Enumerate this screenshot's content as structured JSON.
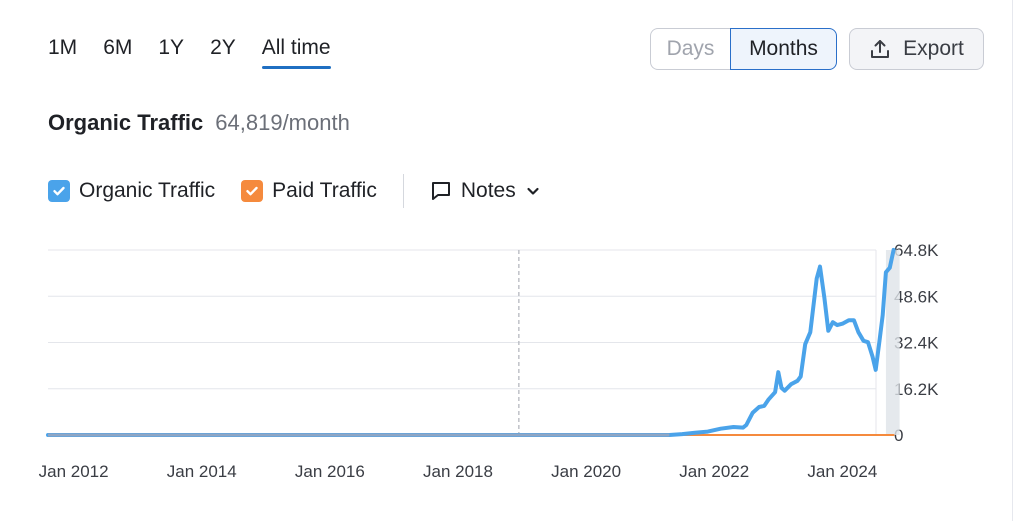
{
  "ranges": [
    "1M",
    "6M",
    "1Y",
    "2Y",
    "All time"
  ],
  "active_range": "All time",
  "granularity": {
    "days": "Days",
    "months": "Months",
    "selected": "Months"
  },
  "export_label": "Export",
  "title": "Organic Traffic",
  "metric_value": "64,819/month",
  "legend": {
    "organic": {
      "label": "Organic Traffic",
      "color": "#4aa3ea",
      "checked": true
    },
    "paid": {
      "label": "Paid Traffic",
      "color": "#f58a3d",
      "checked": true
    }
  },
  "notes_label": "Notes",
  "icons": {
    "export": "upload-icon",
    "notes": "speech-bubble-icon",
    "chevron": "chevron-down-icon",
    "check": "check-icon"
  },
  "chart_data": {
    "type": "line",
    "x_ticks": [
      "Jan 2012",
      "Jan 2014",
      "Jan 2016",
      "Jan 2018",
      "Jan 2020",
      "Jan 2022",
      "Jan 2024"
    ],
    "y_ticks": [
      "0",
      "16.2K",
      "32.4K",
      "48.6K",
      "64.8K"
    ],
    "ylim": [
      0,
      64800
    ],
    "xlim": [
      2011.6,
      2024.4
    ],
    "grid": true,
    "marker_line_x": 2018.95,
    "series": [
      {
        "name": "Organic Traffic",
        "color": "#4aa3ea",
        "points": [
          [
            2011.6,
            0
          ],
          [
            2021.3,
            0
          ],
          [
            2021.5,
            300
          ],
          [
            2021.7,
            800
          ],
          [
            2021.9,
            1200
          ],
          [
            2022.1,
            2200
          ],
          [
            2022.3,
            2800
          ],
          [
            2022.45,
            2600
          ],
          [
            2022.5,
            3500
          ],
          [
            2022.6,
            7800
          ],
          [
            2022.7,
            9800
          ],
          [
            2022.78,
            10200
          ],
          [
            2022.85,
            12500
          ],
          [
            2022.95,
            15000
          ],
          [
            2023.0,
            22000
          ],
          [
            2023.05,
            16500
          ],
          [
            2023.1,
            15500
          ],
          [
            2023.2,
            17800
          ],
          [
            2023.3,
            19000
          ],
          [
            2023.35,
            20500
          ],
          [
            2023.42,
            31800
          ],
          [
            2023.5,
            36000
          ],
          [
            2023.6,
            54800
          ],
          [
            2023.65,
            59000
          ],
          [
            2023.72,
            48000
          ],
          [
            2023.78,
            36500
          ],
          [
            2023.85,
            39500
          ],
          [
            2023.92,
            38500
          ],
          [
            2024.0,
            39000
          ],
          [
            2024.1,
            40200
          ],
          [
            2024.18,
            40200
          ],
          [
            2024.25,
            36000
          ],
          [
            2024.33,
            33000
          ],
          [
            2024.4,
            32500
          ],
          [
            2024.47,
            27500
          ],
          [
            2024.52,
            22800
          ],
          [
            2024.58,
            33000
          ],
          [
            2024.63,
            42000
          ],
          [
            2024.68,
            57000
          ],
          [
            2024.74,
            58600
          ],
          [
            2024.8,
            64819
          ]
        ]
      },
      {
        "name": "Paid Traffic",
        "color": "#f58a3d",
        "points": [
          [
            2021.2,
            0
          ],
          [
            2024.8,
            0
          ]
        ]
      }
    ]
  }
}
